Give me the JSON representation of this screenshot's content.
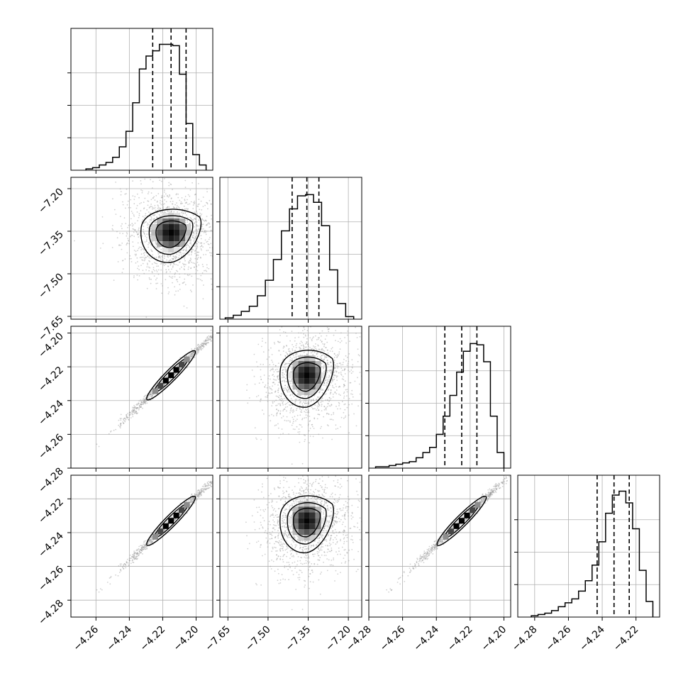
{
  "chart_data": {
    "type": "corner",
    "title": "",
    "n_params": 4,
    "params": [
      {
        "xlim": [
          -4.275,
          -4.19
        ],
        "ylim": [
          -4.285,
          -4.195
        ],
        "ticks": [
          -4.26,
          -4.24,
          -4.22,
          -4.2
        ],
        "tick_labels": [
          "−4.26",
          "−4.24",
          "−4.22",
          "−4.20"
        ],
        "quantiles": [
          -4.226,
          -4.215,
          -4.206
        ],
        "mean": -4.215,
        "sd": 0.009
      },
      {
        "xlim": [
          -7.68,
          -7.15
        ],
        "ylim": [
          -7.66,
          -7.16
        ],
        "ticks": [
          -7.65,
          -7.5,
          -7.35,
          -7.2
        ],
        "tick_labels": [
          "−7.65",
          "−7.50",
          "−7.35",
          "−7.20"
        ],
        "quantiles": [
          -7.41,
          -7.355,
          -7.31
        ],
        "mean": -7.355,
        "sd": 0.05
      },
      {
        "xlim": [
          -4.28,
          -4.196
        ],
        "ylim": [
          -4.28,
          -4.196
        ],
        "ticks": [
          -4.28,
          -4.26,
          -4.24,
          -4.22,
          -4.2
        ],
        "tick_labels": [
          "−4.28",
          "−4.26",
          "−4.24",
          "−4.22",
          "−4.20"
        ],
        "quantiles": [
          -4.235,
          -4.225,
          -4.216
        ],
        "mean": -4.225,
        "sd": 0.009
      },
      {
        "xlim": [
          -4.29,
          -4.206
        ],
        "ylim": [
          -4.29,
          -4.206
        ],
        "ticks": [
          -4.28,
          -4.26,
          -4.24,
          -4.22
        ],
        "tick_labels": [
          "−4.28",
          "−4.26",
          "−4.24",
          "−4.22"
        ],
        "quantiles": [
          -4.243,
          -4.233,
          -4.224
        ],
        "mean": -4.233,
        "sd": 0.009
      }
    ],
    "histograms": [
      {
        "param": 0,
        "bin_edges": [
          -4.266,
          -4.262,
          -4.258,
          -4.254,
          -4.25,
          -4.246,
          -4.242,
          -4.238,
          -4.234,
          -4.23,
          -4.226,
          -4.222,
          -4.218,
          -4.214,
          -4.21,
          -4.206,
          -4.202,
          -4.198,
          -4.194
        ],
        "counts": [
          1,
          2,
          4,
          6,
          10,
          18,
          30,
          52,
          78,
          88,
          92,
          97,
          97,
          96,
          74,
          36,
          12,
          4
        ],
        "peak_count": 100
      },
      {
        "param": 1,
        "bin_edges": [
          -7.66,
          -7.63,
          -7.6,
          -7.57,
          -7.54,
          -7.51,
          -7.48,
          -7.45,
          -7.42,
          -7.39,
          -7.36,
          -7.33,
          -7.3,
          -7.27,
          -7.24,
          -7.21,
          -7.18
        ],
        "counts": [
          1,
          3,
          6,
          10,
          18,
          30,
          46,
          68,
          85,
          95,
          96,
          90,
          72,
          38,
          12,
          2
        ],
        "peak_count": 100
      },
      {
        "param": 2,
        "bin_edges": [
          -4.276,
          -4.272,
          -4.268,
          -4.264,
          -4.26,
          -4.256,
          -4.252,
          -4.248,
          -4.244,
          -4.24,
          -4.236,
          -4.232,
          -4.228,
          -4.224,
          -4.22,
          -4.216,
          -4.212,
          -4.208,
          -4.204,
          -4.2
        ],
        "counts": [
          1,
          1,
          2,
          3,
          4,
          5,
          8,
          12,
          16,
          26,
          40,
          56,
          74,
          90,
          96,
          95,
          82,
          40,
          12
        ],
        "peak_count": 100
      },
      {
        "param": 3,
        "bin_edges": [
          -4.282,
          -4.278,
          -4.274,
          -4.27,
          -4.266,
          -4.262,
          -4.258,
          -4.254,
          -4.25,
          -4.246,
          -4.242,
          -4.238,
          -4.234,
          -4.23,
          -4.226,
          -4.222,
          -4.218,
          -4.214,
          -4.21
        ],
        "counts": [
          1,
          2,
          3,
          5,
          8,
          11,
          14,
          20,
          28,
          40,
          58,
          80,
          94,
          97,
          88,
          68,
          36,
          12
        ],
        "peak_count": 100
      }
    ],
    "panels_2d": [
      {
        "row": 1,
        "col": 0,
        "x_param": 0,
        "y_param": 1,
        "shape": "blob",
        "rho": -0.12
      },
      {
        "row": 2,
        "col": 0,
        "x_param": 0,
        "y_param": 2,
        "shape": "line",
        "rho": 0.995
      },
      {
        "row": 2,
        "col": 1,
        "x_param": 1,
        "y_param": 2,
        "shape": "blob",
        "rho": 0.08
      },
      {
        "row": 3,
        "col": 0,
        "x_param": 0,
        "y_param": 3,
        "shape": "line",
        "rho": 0.995
      },
      {
        "row": 3,
        "col": 1,
        "x_param": 1,
        "y_param": 3,
        "shape": "blob",
        "rho": 0.08
      },
      {
        "row": 3,
        "col": 2,
        "x_param": 2,
        "y_param": 3,
        "shape": "line",
        "rho": 0.995
      }
    ],
    "grid": true,
    "colors": {
      "line": "#000000",
      "grid": "#b0b0b0",
      "scatter": "#9a9a9a",
      "hist2d": "#000000"
    }
  }
}
